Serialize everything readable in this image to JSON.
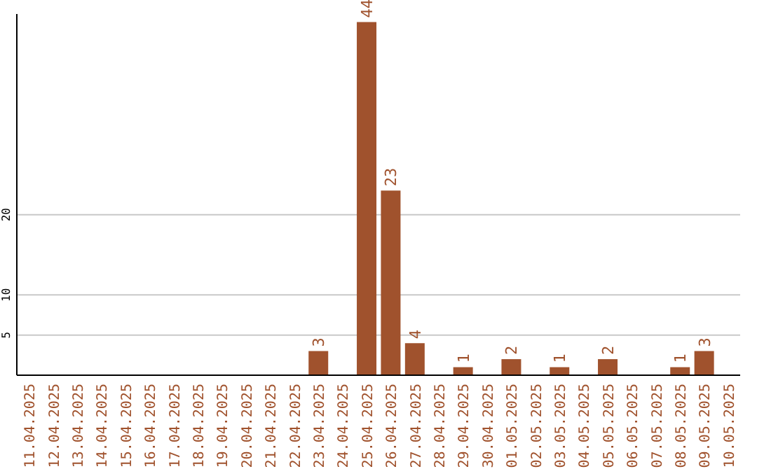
{
  "chart_data": {
    "type": "bar",
    "categories": [
      "11.04.2025",
      "12.04.2025",
      "13.04.2025",
      "14.04.2025",
      "15.04.2025",
      "16.04.2025",
      "17.04.2025",
      "18.04.2025",
      "19.04.2025",
      "20.04.2025",
      "21.04.2025",
      "22.04.2025",
      "23.04.2025",
      "24.04.2025",
      "25.04.2025",
      "26.04.2025",
      "27.04.2025",
      "28.04.2025",
      "29.04.2025",
      "30.04.2025",
      "01.05.2025",
      "02.05.2025",
      "03.05.2025",
      "04.05.2025",
      "05.05.2025",
      "06.05.2025",
      "07.05.2025",
      "08.05.2025",
      "09.05.2025",
      "10.05.2025"
    ],
    "values": [
      0,
      0,
      0,
      0,
      0,
      0,
      0,
      0,
      0,
      0,
      0,
      0,
      3,
      0,
      44,
      23,
      4,
      0,
      1,
      0,
      2,
      0,
      1,
      0,
      2,
      0,
      0,
      1,
      3,
      0
    ],
    "value_labels": [
      null,
      null,
      null,
      null,
      null,
      null,
      null,
      null,
      null,
      null,
      null,
      null,
      "3",
      null,
      "44",
      "23",
      "4",
      null,
      "1",
      null,
      "2",
      null,
      "1",
      null,
      "2",
      null,
      null,
      "1",
      "3",
      null
    ],
    "color": "#a0522d",
    "ylim": [
      0,
      45
    ],
    "yticks": [
      5,
      10,
      20
    ],
    "grid": "y"
  }
}
